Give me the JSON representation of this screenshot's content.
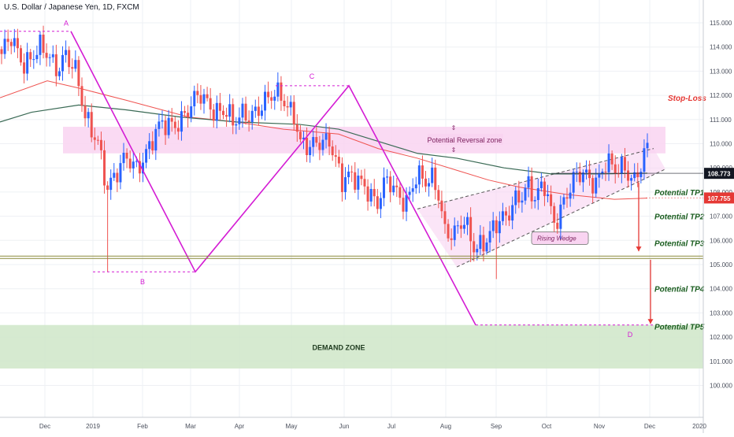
{
  "header": {
    "symbol_title": "U.S. Dollar / Japanese Yen, 1D, FXCM"
  },
  "chart_data": {
    "type": "candlestick",
    "x_tick_labels": [
      "Dec",
      "2019",
      "Feb",
      "Mar",
      "Apr",
      "May",
      "Jun",
      "Jul",
      "Aug",
      "Sep",
      "Oct",
      "Nov",
      "Dec",
      "2020"
    ],
    "y_tick_labels": [
      "115.000",
      "114.000",
      "113.000",
      "112.000",
      "111.000",
      "110.000",
      "109.000",
      "108.000",
      "107.000",
      "106.000",
      "105.000",
      "104.000",
      "103.000",
      "102.000",
      "101.000",
      "100.000"
    ],
    "ylim": [
      99.5,
      115.5
    ],
    "grid": true,
    "price_badges": [
      {
        "label": "108.773",
        "value": 108.773,
        "color": "#131722"
      },
      {
        "label": "107.755",
        "value": 107.755,
        "color": "#e53935"
      }
    ],
    "pattern_points": [
      {
        "label": "A",
        "value": 114.65
      },
      {
        "label": "B",
        "value": 104.7
      },
      {
        "label": "C",
        "value": 112.4
      },
      {
        "label": "D",
        "value": 102.5
      }
    ],
    "zones": [
      {
        "label": "Potential Reversal zone",
        "low": 109.6,
        "high": 110.7,
        "color": "#f9d4f1"
      },
      {
        "label": "DEMAND ZONE",
        "low": 100.7,
        "high": 102.5,
        "color": "#cfe6c8"
      }
    ],
    "horizontal_levels": [
      {
        "value": 105.3,
        "color": "#8a8a3c"
      }
    ],
    "pattern_label": "Rising Wedge",
    "annotations": [
      {
        "text": "Stop-Loss",
        "value": 111.9,
        "color": "#e53935"
      },
      {
        "text": "Potential TP1",
        "value": 108.0,
        "color": "#1b5e20"
      },
      {
        "text": "Potential TP2",
        "value": 107.0,
        "color": "#1b5e20"
      },
      {
        "text": "Potential TP3",
        "value": 105.9,
        "color": "#1b5e20"
      },
      {
        "text": "Potential TP4",
        "value": 104.0,
        "color": "#1b5e20"
      },
      {
        "text": "Potential TP5",
        "value": 102.45,
        "color": "#1b5e20"
      }
    ],
    "colors": {
      "up": "#2962ff",
      "down": "#ef5350",
      "harmonic": "#d41cd4",
      "ma_fast": "#ef5350",
      "ma_slow": "#3a6a55",
      "grid": "#eef0f4"
    }
  }
}
